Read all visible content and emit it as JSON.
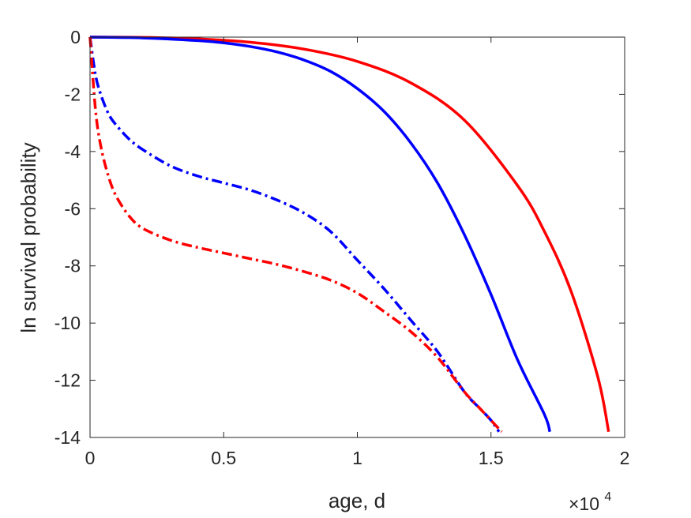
{
  "chart_data": {
    "type": "line",
    "xlabel": "age, d",
    "ylabel": "ln survival probability",
    "x_multiplier": {
      "base": "×10",
      "exponent": "4"
    },
    "xlim": [
      0,
      20000
    ],
    "ylim": [
      -14,
      0
    ],
    "xticks": [
      0,
      5000,
      10000,
      15000,
      20000
    ],
    "xtick_labels": [
      "0",
      "0.5",
      "1",
      "1.5",
      "2"
    ],
    "yticks": [
      0,
      -2,
      -4,
      -6,
      -8,
      -10,
      -12,
      -14
    ],
    "ytick_labels": [
      "0",
      "-2",
      "-4",
      "-6",
      "-8",
      "-10",
      "-12",
      "-14"
    ],
    "grid": false,
    "legend": "none",
    "series": [
      {
        "color": "#ff0000",
        "style": "solid",
        "x": [
          0,
          2000,
          4000,
          6000,
          8000,
          10000,
          12000,
          14000,
          16000,
          17000,
          18000,
          19000,
          19400
        ],
        "y": [
          0,
          -0.01,
          -0.06,
          -0.18,
          -0.42,
          -0.85,
          -1.6,
          -2.9,
          -5.2,
          -6.8,
          -8.9,
          -11.9,
          -13.8
        ]
      },
      {
        "color": "#0000ff",
        "style": "solid",
        "x": [
          0,
          2000,
          4000,
          5000,
          6000,
          7000,
          8000,
          9000,
          10000,
          11000,
          12000,
          13000,
          14000,
          15000,
          16000,
          17000,
          17200
        ],
        "y": [
          0,
          -0.03,
          -0.12,
          -0.2,
          -0.33,
          -0.52,
          -0.8,
          -1.2,
          -1.8,
          -2.6,
          -3.7,
          -5.1,
          -6.9,
          -9.0,
          -11.3,
          -13.2,
          -13.8
        ]
      },
      {
        "color": "#0000ff",
        "style": "dashdot",
        "x": [
          0,
          200,
          400,
          700,
          1000,
          1500,
          2000,
          3000,
          4000,
          5000,
          6000,
          7000,
          8000,
          9000,
          10000,
          11000,
          12000,
          13000,
          14000,
          14600,
          15000,
          15300
        ],
        "y": [
          0,
          -1.3,
          -2.0,
          -2.7,
          -3.1,
          -3.6,
          -3.95,
          -4.5,
          -4.85,
          -5.1,
          -5.35,
          -5.7,
          -6.15,
          -6.8,
          -7.8,
          -8.8,
          -9.9,
          -11.0,
          -12.4,
          -13.0,
          -13.4,
          -13.8
        ]
      },
      {
        "color": "#ff0000",
        "style": "dashdot",
        "x": [
          0,
          200,
          400,
          700,
          1000,
          1500,
          2000,
          3000,
          4000,
          5000,
          6000,
          7000,
          8000,
          9000,
          10000,
          11000,
          12000,
          13000,
          14000,
          14600,
          15000,
          15400
        ],
        "y": [
          0,
          -2.5,
          -3.8,
          -4.9,
          -5.6,
          -6.3,
          -6.7,
          -7.1,
          -7.35,
          -7.55,
          -7.75,
          -7.95,
          -8.2,
          -8.5,
          -8.95,
          -9.6,
          -10.3,
          -11.2,
          -12.4,
          -13.0,
          -13.4,
          -13.8
        ]
      }
    ]
  }
}
